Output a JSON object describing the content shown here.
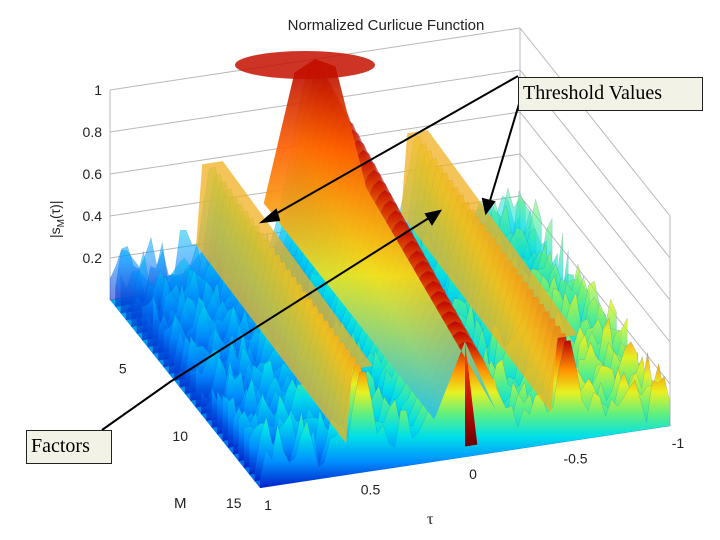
{
  "chart_data": {
    "type": "surface",
    "title": "Normalized Curlicue Function",
    "zlabel": "|s_M(τ)|",
    "xlabel": "τ",
    "ylabel": "M",
    "z_ticks": [
      "0.2",
      "0.4",
      "0.6",
      "0.8",
      "1"
    ],
    "tau_ticks": [
      "1",
      "0.5",
      "0",
      "-0.5",
      "-1"
    ],
    "m_ticks": [
      "5",
      "10",
      "15"
    ],
    "tau_range": [
      -1,
      1
    ],
    "m_range": [
      1,
      15
    ],
    "z_range": [
      0,
      1
    ],
    "colormap": "jet",
    "ridges": [
      {
        "tau": 0.0,
        "m_start": 1,
        "m_end": 15,
        "z_start": 1.0,
        "z_end": 0.55
      },
      {
        "tau": 0.5,
        "m_start": 1,
        "m_end": 15,
        "z_start": 0.58,
        "z_end": 0.5
      },
      {
        "tau": -0.5,
        "m_start": 1,
        "m_end": 15,
        "z_start": 0.58,
        "z_end": 0.5
      }
    ],
    "annotations": [
      {
        "text": "Threshold Values",
        "points_to": [
          "ridge tau=0.5",
          "ridge tau=-0.5"
        ]
      },
      {
        "text": "Factors",
        "points_to": [
          "ridge tau=0"
        ]
      }
    ]
  },
  "labels": {
    "title": "Normalized Curlicue Function",
    "zlabel_main": "|s",
    "zlabel_sub": "M",
    "zlabel_rest": "(τ)|",
    "xlabel": "τ",
    "ylabel": "M",
    "threshold": "Threshold Values",
    "factors": "Factors"
  }
}
